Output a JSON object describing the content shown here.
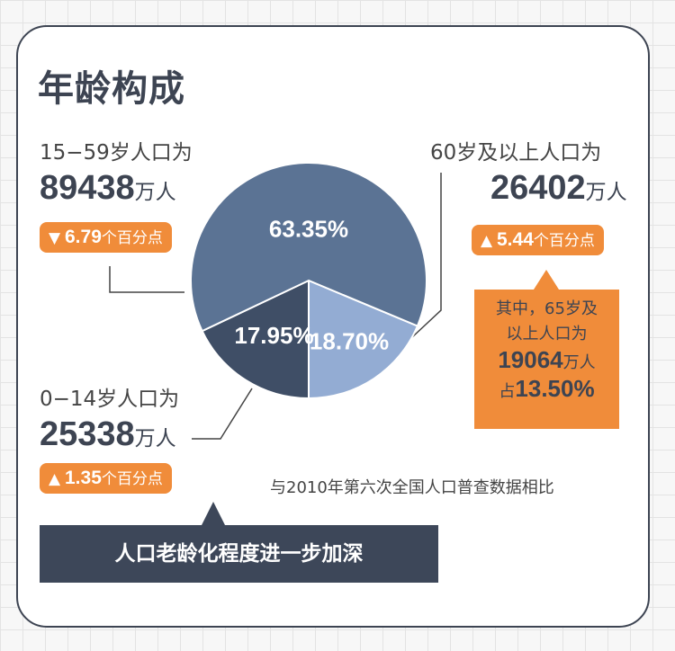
{
  "title": "年龄构成",
  "chart_data": {
    "type": "pie",
    "slices": [
      {
        "label": "15-59岁",
        "value": 63.35,
        "text": "63.35%",
        "color": "#5b7394"
      },
      {
        "label": "60岁及以上",
        "value": 18.7,
        "text": "18.70%",
        "color": "#93acd3"
      },
      {
        "label": "0-14岁",
        "value": 17.95,
        "text": "17.95%",
        "color": "#3f4e66"
      }
    ]
  },
  "groups": {
    "working": {
      "label": "15−59岁人口为",
      "number": "89438",
      "unit": "万人",
      "change": "6.79",
      "change_unit": "个百分点",
      "direction": "down"
    },
    "elderly": {
      "label": "60岁及以上人口为",
      "number": "26402",
      "unit": "万人",
      "change": "5.44",
      "change_unit": "个百分点",
      "direction": "up"
    },
    "children": {
      "label": "0−14岁人口为",
      "number": "25338",
      "unit": "万人",
      "change": "1.35",
      "change_unit": "个百分点",
      "direction": "up"
    }
  },
  "callout": {
    "line1": "其中，65岁及",
    "line2": "以上人口为",
    "number": "19064",
    "unit": "万人",
    "prefix": "占",
    "percent": "13.50%"
  },
  "note": "与2010年第六次全国人口普查数据相比",
  "banner": "人口老龄化程度进一步加深",
  "colors": {
    "accent": "#f08c3a",
    "dark": "#3d4759"
  }
}
